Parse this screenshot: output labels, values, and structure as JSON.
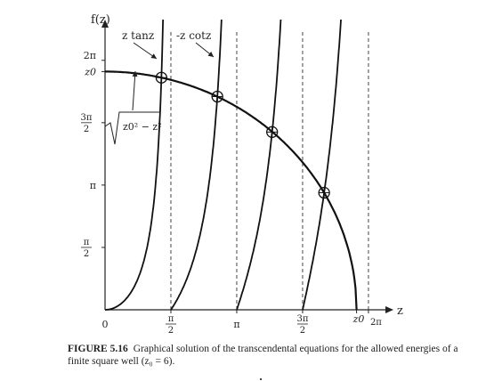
{
  "chart_data": {
    "type": "line",
    "z0": 6,
    "xlim": [
      0,
      6.6
    ],
    "ylim": [
      0,
      6.9
    ],
    "axes": {
      "y_title": "f(z)",
      "x_title": "z"
    },
    "x_ticks": [
      {
        "value": 0,
        "label": "0"
      },
      {
        "value": 1.5708,
        "label": "π/2"
      },
      {
        "value": 3.1416,
        "label": "π"
      },
      {
        "value": 4.7124,
        "label": "3π/2"
      },
      {
        "value": 6.0,
        "label": "z0"
      },
      {
        "value": 6.2832,
        "label": "2π"
      }
    ],
    "y_ticks": [
      {
        "value": 1.5708,
        "label": "π/2"
      },
      {
        "value": 3.1416,
        "label": "π"
      },
      {
        "value": 4.7124,
        "label": "3π/2"
      },
      {
        "value": 6.0,
        "label": "z0"
      },
      {
        "value": 6.2832,
        "label": "2π"
      }
    ],
    "asymptotes_x": [
      1.5708,
      3.1416,
      4.7124,
      6.2832
    ],
    "series": [
      {
        "name": "z tanz",
        "kind": "z tan z",
        "branches": [
          [
            0,
            1.5708
          ],
          [
            3.1416,
            4.7124
          ]
        ]
      },
      {
        "name": "-z cotz",
        "kind": "-z cot z",
        "branches": [
          [
            1.5708,
            3.1416
          ],
          [
            4.7124,
            6.2832
          ]
        ]
      },
      {
        "name": "√(z0² − z²)",
        "kind": "sqrt",
        "branches": [
          [
            0,
            6.0
          ]
        ]
      }
    ],
    "intersections": [
      {
        "z": 1.345,
        "f": 5.847
      },
      {
        "z": 2.679,
        "f": 5.37
      },
      {
        "z": 3.985,
        "f": 4.477
      },
      {
        "z": 5.226,
        "f": 2.948
      }
    ],
    "annotations": {
      "tan_label": "z tanz",
      "cot_label": "-z cotz",
      "sqrt_label": "z0² − z²"
    }
  },
  "caption": {
    "number": "FIGURE 5.16",
    "text": "Graphical solution of the transcendental equations for the allowed energies of a finite square well (z₀ = 6)."
  }
}
